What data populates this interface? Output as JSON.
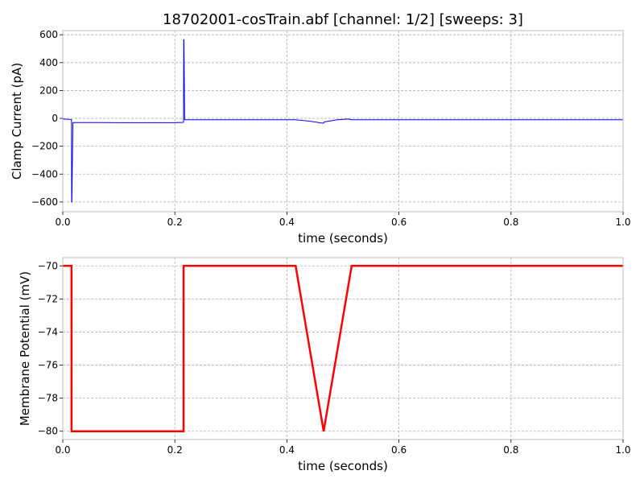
{
  "title": "18702001-cosTrain.abf [channel: 1/2] [sweeps: 3]",
  "chart_data": [
    {
      "type": "line",
      "xlabel": "time (seconds)",
      "ylabel": "Clamp Current (pA)",
      "xlim": [
        0,
        1.0
      ],
      "ylim": [
        -670,
        630
      ],
      "xticks": [
        0.0,
        0.2,
        0.4,
        0.6,
        0.8,
        1.0
      ],
      "xtick_labels": [
        "0.0",
        "0.2",
        "0.4",
        "0.6",
        "0.8",
        "1.0"
      ],
      "yticks": [
        600,
        400,
        200,
        0,
        -200,
        -400,
        -600
      ],
      "ytick_labels": [
        "600",
        "400",
        "200",
        "0",
        "−200",
        "−400",
        "−600"
      ],
      "grid": true,
      "series": [
        {
          "color": "#0000ff",
          "points": [
            [
              0.0,
              -5
            ],
            [
              0.0155,
              -8
            ],
            [
              0.0158,
              -600
            ],
            [
              0.0162,
              -600
            ],
            [
              0.018,
              -30
            ],
            [
              0.05,
              -30
            ],
            [
              0.1,
              -31
            ],
            [
              0.15,
              -31
            ],
            [
              0.2,
              -31
            ],
            [
              0.2155,
              -29
            ],
            [
              0.2158,
              565
            ],
            [
              0.2162,
              565
            ],
            [
              0.2175,
              -10
            ],
            [
              0.25,
              -10
            ],
            [
              0.3,
              -10
            ],
            [
              0.35,
              -10
            ],
            [
              0.4,
              -10
            ],
            [
              0.415,
              -10
            ],
            [
              0.44,
              -20
            ],
            [
              0.465,
              -35
            ],
            [
              0.467,
              -25
            ],
            [
              0.49,
              -10
            ],
            [
              0.51,
              -5
            ],
            [
              0.515,
              -10
            ],
            [
              0.6,
              -10
            ],
            [
              0.7,
              -10
            ],
            [
              0.8,
              -10
            ],
            [
              0.9,
              -10
            ],
            [
              1.0,
              -10
            ]
          ]
        }
      ]
    },
    {
      "type": "line",
      "xlabel": "time (seconds)",
      "ylabel": "Membrane Potential (mV)",
      "xlim": [
        0,
        1.0
      ],
      "ylim": [
        -80.5,
        -69.5
      ],
      "xticks": [
        0.0,
        0.2,
        0.4,
        0.6,
        0.8,
        1.0
      ],
      "xtick_labels": [
        "0.0",
        "0.2",
        "0.4",
        "0.6",
        "0.8",
        "1.0"
      ],
      "yticks": [
        -70,
        -72,
        -74,
        -76,
        -78,
        -80
      ],
      "ytick_labels": [
        "−70",
        "−72",
        "−74",
        "−76",
        "−78",
        "−80"
      ],
      "grid": true,
      "series": [
        {
          "color": "#ff0000",
          "points": [
            [
              0.0,
              -70
            ],
            [
              0.0156,
              -70
            ],
            [
              0.0156,
              -80
            ],
            [
              0.2156,
              -80
            ],
            [
              0.2156,
              -70
            ],
            [
              0.4156,
              -70
            ],
            [
              0.4656,
              -80
            ],
            [
              0.5156,
              -70
            ],
            [
              1.0,
              -70
            ]
          ]
        }
      ]
    }
  ]
}
